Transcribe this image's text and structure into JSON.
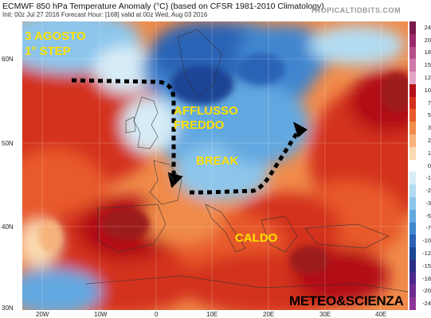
{
  "header": {
    "title": "ECMWF 850 hPa Temperature Anomaly (°C) (based on CFSR 1981-2010 Climatology)",
    "subtitle": "Init: 00z Jul 27 2016   Forecast Hour: [168]   valid at 00z Wed, Aug 03 2016",
    "brand": "TROPICALTIDBITS.COM"
  },
  "annotations": {
    "date_line1": "3 AGOSTO",
    "date_line2": "1° STEP",
    "cold_line1": "AFFLUSSO",
    "cold_line2": "FREDDO",
    "break": "BREAK",
    "hot": "CALDO",
    "signature": "METEO&SCIENZA"
  },
  "axes": {
    "lat_labels": [
      "60N",
      "50N",
      "40N",
      "30N"
    ],
    "lon_labels": [
      "20W",
      "10W",
      "0",
      "10E",
      "20E",
      "30E",
      "40E"
    ]
  },
  "colorbar": {
    "labels": [
      "24",
      "20",
      "18",
      "15",
      "12",
      "10",
      "7",
      "5",
      "3",
      "2",
      "1",
      "0",
      "-1",
      "-2",
      "-3",
      "-5",
      "-7",
      "-10",
      "-12",
      "-15",
      "-18",
      "-20",
      "-24"
    ],
    "colors": [
      "#7a1a4a",
      "#9c2a6a",
      "#b84f8a",
      "#cf77a8",
      "#e3a6c8",
      "#b31019",
      "#d3301e",
      "#e85a2a",
      "#f08b4a",
      "#f6b27a",
      "#fad9b0",
      "#ffffff",
      "#d6ecf7",
      "#b2dcf2",
      "#8cc6ec",
      "#62a8e0",
      "#3f86cf",
      "#2a63b5",
      "#1c4596",
      "#2c2f86",
      "#4c2a8c",
      "#6e2c91",
      "#8d3697"
    ]
  }
}
